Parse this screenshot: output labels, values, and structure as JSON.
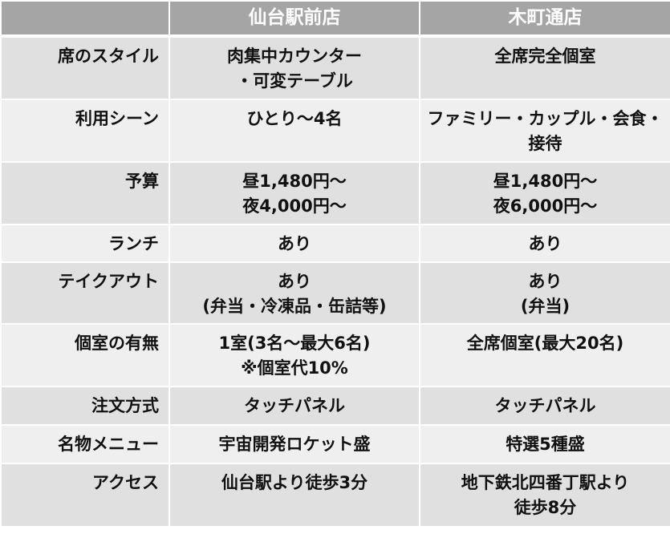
{
  "headers": [
    "",
    "仙台駅前店",
    "木町通店"
  ],
  "rows": [
    {
      "label": "席のスタイル",
      "a": "肉集中カウンター\n・可変テーブル",
      "b": "全席完全個室"
    },
    {
      "label": "利用シーン",
      "a": "ひとり〜4名",
      "b": "ファミリー・カップル・会食・\n接待"
    },
    {
      "label": "予算",
      "a": "昼1,480円〜\n夜4,000円〜",
      "b": "昼1,480円〜\n夜6,000円〜"
    },
    {
      "label": "ランチ",
      "a": "あり",
      "b": "あり"
    },
    {
      "label": "テイクアウト",
      "a": "あり\n(弁当・冷凍品・缶詰等)",
      "b": "あり\n(弁当)"
    },
    {
      "label": "個室の有無",
      "a": "1室(3名〜最大6名)\n※個室代10%",
      "b": "全席個室(最大20名)"
    },
    {
      "label": "注文方式",
      "a": "タッチパネル",
      "b": "タッチパネル"
    },
    {
      "label": "名物メニュー",
      "a": "宇宙開発ロケット盛",
      "b": "特選5種盛"
    },
    {
      "label": "アクセス",
      "a": "仙台駅より徒歩3分",
      "b": "地下鉄北四番丁駅より\n徒歩8分"
    }
  ]
}
